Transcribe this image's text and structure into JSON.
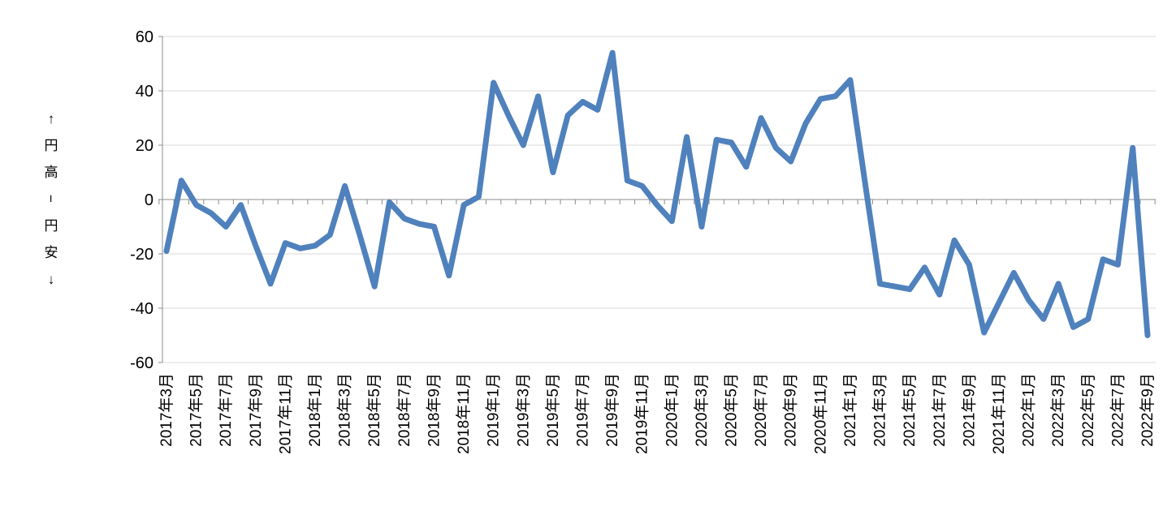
{
  "figure": {
    "background": "#ffffff"
  },
  "chart_data": {
    "type": "line",
    "title": "",
    "legend": "none",
    "grid": "horizontal",
    "y_axis_title": "↑円高−円安↓",
    "y_axis_title_chars": [
      "↑",
      "円",
      "高",
      "−",
      "円",
      "安",
      "↓"
    ],
    "ylim": [
      -60,
      60
    ],
    "y_ticks": [
      60,
      40,
      20,
      0,
      -20,
      -40,
      -60
    ],
    "y_tick_labels": [
      "60",
      "40",
      "20",
      "0",
      "-20",
      "-40",
      "-60"
    ],
    "x_label_every_n": 2,
    "x_minor_ticks": "monthly-boundaries",
    "categories": [
      "2017年3月",
      "2017年4月",
      "2017年5月",
      "2017年6月",
      "2017年7月",
      "2017年8月",
      "2017年9月",
      "2017年10月",
      "2017年11月",
      "2017年12月",
      "2018年1月",
      "2018年2月",
      "2018年3月",
      "2018年4月",
      "2018年5月",
      "2018年6月",
      "2018年7月",
      "2018年8月",
      "2018年9月",
      "2018年10月",
      "2018年11月",
      "2018年12月",
      "2019年1月",
      "2019年2月",
      "2019年3月",
      "2019年4月",
      "2019年5月",
      "2019年6月",
      "2019年7月",
      "2019年8月",
      "2019年9月",
      "2019年10月",
      "2019年11月",
      "2019年12月",
      "2020年1月",
      "2020年2月",
      "2020年3月",
      "2020年4月",
      "2020年5月",
      "2020年6月",
      "2020年7月",
      "2020年8月",
      "2020年9月",
      "2020年10月",
      "2020年11月",
      "2020年12月",
      "2021年1月",
      "2021年2月",
      "2021年3月",
      "2021年4月",
      "2021年5月",
      "2021年6月",
      "2021年7月",
      "2021年8月",
      "2021年9月",
      "2021年10月",
      "2021年11月",
      "2021年12月",
      "2022年1月",
      "2022年2月",
      "2022年3月",
      "2022年4月",
      "2022年5月",
      "2022年6月",
      "2022年7月",
      "2022年8月",
      "2022年9月"
    ],
    "values": [
      -19,
      7,
      -2,
      -5,
      -10,
      -2,
      -17,
      -31,
      -16,
      -18,
      -17,
      -13,
      5,
      -13,
      -32,
      -1,
      -7,
      -9,
      -10,
      -28,
      -2,
      1,
      43,
      31,
      20,
      38,
      10,
      31,
      36,
      33,
      54,
      7,
      5,
      -2,
      -8,
      23,
      -10,
      22,
      21,
      12,
      30,
      19,
      14,
      28,
      37,
      38,
      44,
      6,
      -31,
      -32,
      -33,
      -25,
      -35,
      -15,
      -24,
      -49,
      -38,
      -27,
      -37,
      -44,
      -31,
      -47,
      -44,
      -22,
      -24,
      19,
      -50
    ],
    "line_color": "#4F81BD",
    "gridline_color": "#D9D9D9",
    "axis_color": "#8C8C8C",
    "text_color": "#000000"
  }
}
